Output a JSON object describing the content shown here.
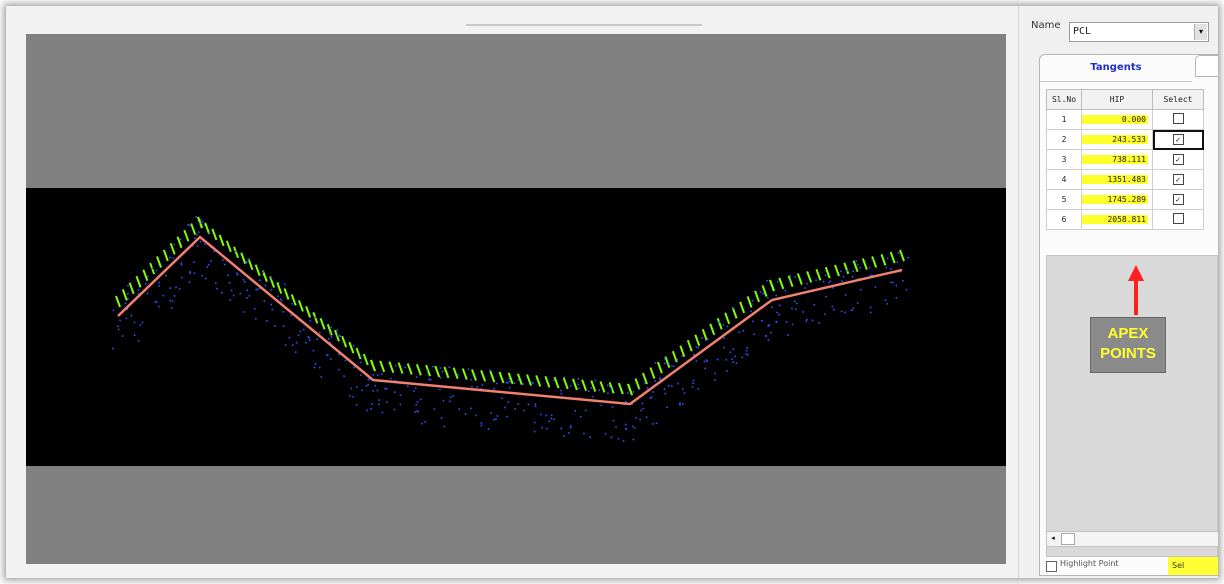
{
  "panel": {
    "name_label": "Name",
    "name_value": "PCL",
    "dropdown_arrow": "▾",
    "tabs": [
      {
        "label": "Tangents"
      },
      {
        "label": ""
      }
    ],
    "columns": [
      "Sl.No",
      "HIP",
      "Select"
    ],
    "rows": [
      {
        "sl": "1",
        "hip": "0.000",
        "checked": false
      },
      {
        "sl": "2",
        "hip": "243.533",
        "checked": true
      },
      {
        "sl": "3",
        "hip": "738.111",
        "checked": true
      },
      {
        "sl": "4",
        "hip": "1351.483",
        "checked": true
      },
      {
        "sl": "5",
        "hip": "1745.289",
        "checked": true
      },
      {
        "sl": "6",
        "hip": "2058.811",
        "checked": false
      }
    ],
    "annotation": {
      "line1": "APEX",
      "line2": "POINTS",
      "color": "#ffff33"
    },
    "highlight_color": "#ffff29",
    "bottom_checkbox_label": "Highlight Point",
    "bottom_button_label": "Sel"
  },
  "viewport": {
    "background": "#808080",
    "scene_background": "#000000",
    "alignment_color": "#f08070",
    "point_colors": [
      "#7fff00",
      "#3050ff"
    ]
  },
  "icons": {
    "dropdown": "chevron-down-icon",
    "scroll_left": "arrow-left-icon",
    "check": "checkmark-icon"
  }
}
